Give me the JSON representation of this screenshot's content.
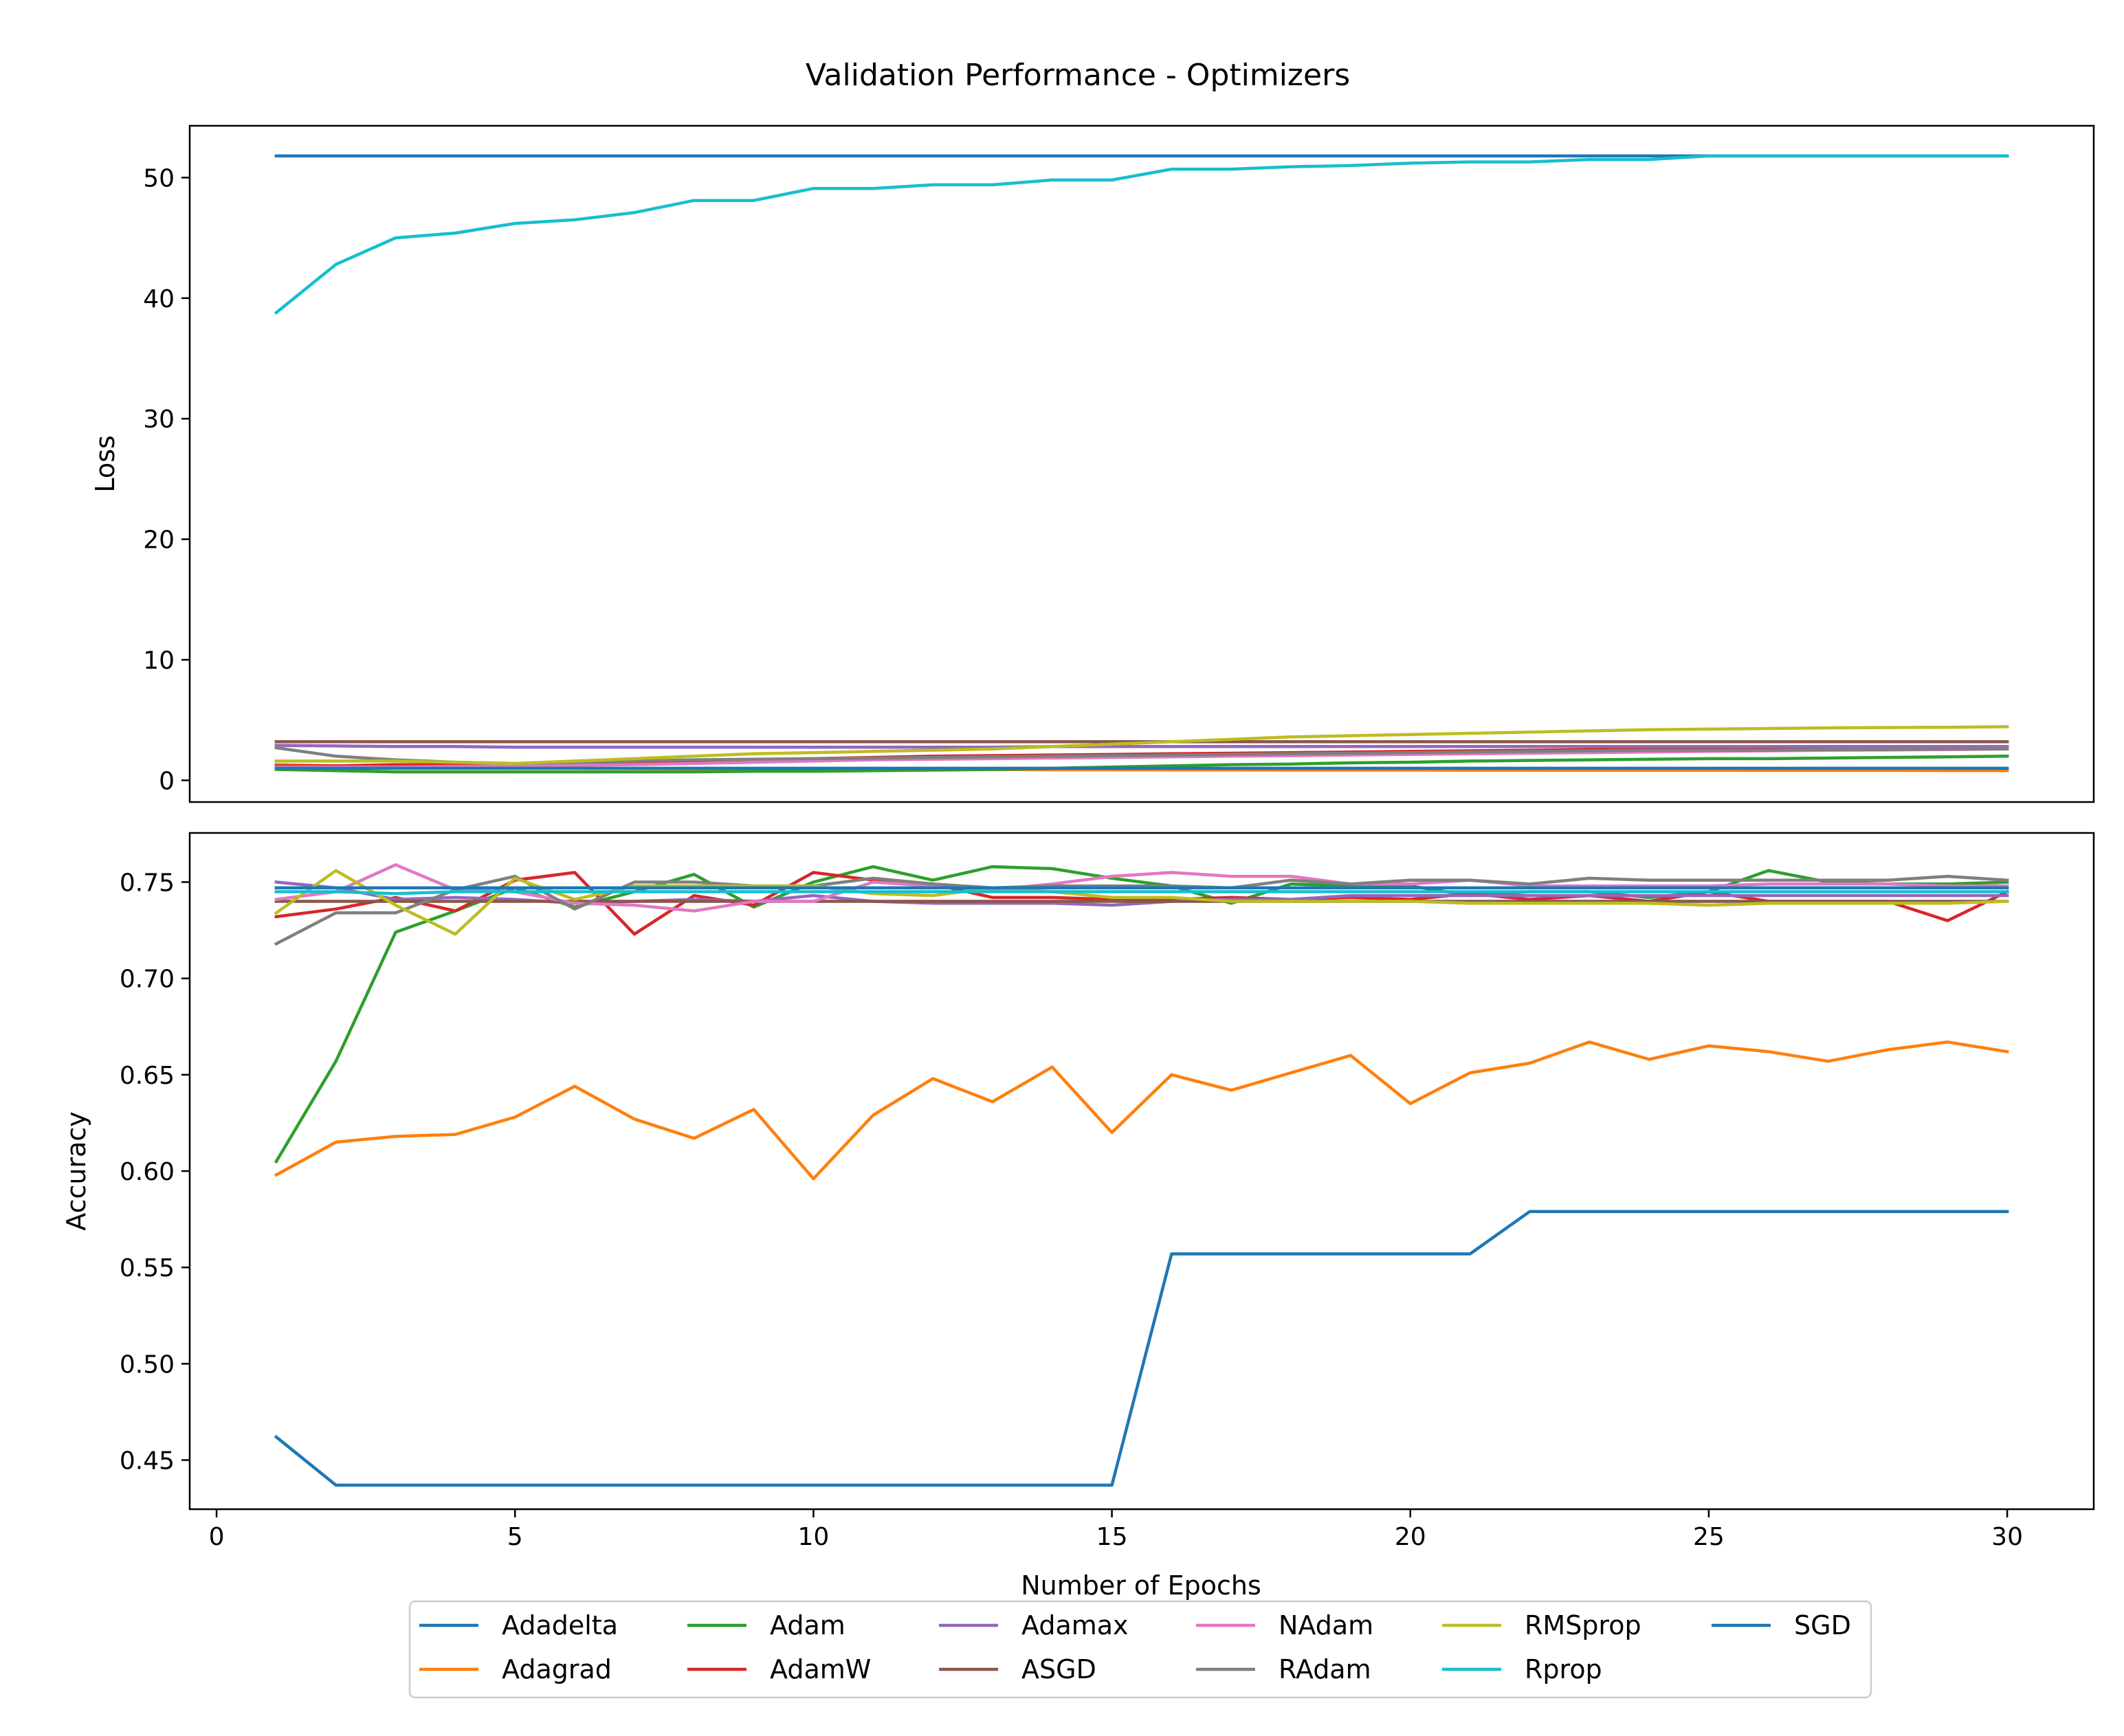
{
  "title": "Validation Performance - Optimizers",
  "colors": {
    "Adadelta": "#1f77b4",
    "Adagrad": "#ff7f0e",
    "Adam": "#2ca02c",
    "AdamW": "#d62728",
    "Adamax": "#9467bd",
    "ASGD": "#8c564b",
    "NAdam": "#e377c2",
    "RAdam": "#7f7f7f",
    "RMSprop": "#bcbd22",
    "Rprop": "#17becf",
    "SGD": "#1f77b4"
  },
  "legend_order": [
    "Adadelta",
    "Adagrad",
    "Adam",
    "AdamW",
    "Adamax",
    "ASGD",
    "NAdam",
    "RAdam",
    "RMSprop",
    "Rprop",
    "SGD"
  ],
  "chart_data": [
    {
      "type": "line",
      "ylabel": "Loss",
      "xlim": [
        -0.45,
        31.45
      ],
      "ylim": [
        -1.8,
        54.3
      ],
      "yticks": [
        0,
        10,
        20,
        30,
        40,
        50
      ],
      "x": [
        1,
        2,
        3,
        4,
        5,
        6,
        7,
        8,
        9,
        10,
        11,
        12,
        13,
        14,
        15,
        16,
        17,
        18,
        19,
        20,
        21,
        22,
        23,
        24,
        25,
        26,
        27,
        28,
        29,
        30
      ],
      "series": [
        {
          "name": "Adadelta",
          "values": [
            51.8,
            51.8,
            51.8,
            51.8,
            51.8,
            51.8,
            51.8,
            51.8,
            51.8,
            51.8,
            51.8,
            51.8,
            51.8,
            51.8,
            51.8,
            51.8,
            51.8,
            51.8,
            51.8,
            51.8,
            51.8,
            51.8,
            51.8,
            51.8,
            51.8,
            51.8,
            51.8,
            51.8,
            51.8,
            51.8
          ]
        },
        {
          "name": "Adagrad",
          "values": [
            1.3,
            1.2,
            1.1,
            1.05,
            1.0,
            1.0,
            0.98,
            0.95,
            0.95,
            0.92,
            0.92,
            0.9,
            0.9,
            0.88,
            0.88,
            0.87,
            0.86,
            0.85,
            0.85,
            0.85,
            0.84,
            0.84,
            0.83,
            0.83,
            0.83,
            0.82,
            0.82,
            0.82,
            0.81,
            0.81
          ]
        },
        {
          "name": "Adam",
          "values": [
            0.9,
            0.8,
            0.7,
            0.7,
            0.7,
            0.7,
            0.7,
            0.7,
            0.75,
            0.75,
            0.8,
            0.85,
            0.9,
            1.0,
            1.1,
            1.2,
            1.3,
            1.35,
            1.45,
            1.5,
            1.6,
            1.65,
            1.7,
            1.75,
            1.8,
            1.8,
            1.85,
            1.9,
            1.95,
            2.0
          ]
        },
        {
          "name": "AdamW",
          "values": [
            1.2,
            1.2,
            1.3,
            1.3,
            1.3,
            1.4,
            1.5,
            1.6,
            1.7,
            1.8,
            1.9,
            2.0,
            2.05,
            2.1,
            2.15,
            2.2,
            2.25,
            2.3,
            2.35,
            2.4,
            2.45,
            2.5,
            2.55,
            2.6,
            2.62,
            2.65,
            2.7,
            2.72,
            2.75,
            2.8
          ]
        },
        {
          "name": "Adamax",
          "values": [
            2.9,
            2.85,
            2.8,
            2.8,
            2.75,
            2.75,
            2.75,
            2.75,
            2.75,
            2.75,
            2.75,
            2.75,
            2.75,
            2.8,
            2.8,
            2.8,
            2.8,
            2.8,
            2.8,
            2.8,
            2.8,
            2.8,
            2.8,
            2.8,
            2.8,
            2.8,
            2.8,
            2.8,
            2.8,
            2.8
          ]
        },
        {
          "name": "ASGD",
          "values": [
            3.2,
            3.2,
            3.2,
            3.2,
            3.2,
            3.2,
            3.2,
            3.2,
            3.2,
            3.2,
            3.2,
            3.2,
            3.2,
            3.2,
            3.2,
            3.2,
            3.2,
            3.2,
            3.2,
            3.2,
            3.2,
            3.2,
            3.2,
            3.2,
            3.2,
            3.2,
            3.2,
            3.2,
            3.2,
            3.2
          ]
        },
        {
          "name": "NAdam",
          "values": [
            1.1,
            1.1,
            1.1,
            1.15,
            1.2,
            1.25,
            1.3,
            1.4,
            1.5,
            1.6,
            1.7,
            1.75,
            1.8,
            1.85,
            1.9,
            1.95,
            2.0,
            2.05,
            2.1,
            2.15,
            2.2,
            2.25,
            2.3,
            2.35,
            2.4,
            2.45,
            2.5,
            2.52,
            2.55,
            2.6
          ]
        },
        {
          "name": "RAdam",
          "values": [
            2.7,
            2.0,
            1.7,
            1.5,
            1.4,
            1.5,
            1.6,
            1.7,
            1.75,
            1.8,
            1.85,
            1.9,
            1.95,
            2.0,
            2.05,
            2.1,
            2.15,
            2.2,
            2.25,
            2.3,
            2.35,
            2.4,
            2.45,
            2.5,
            2.5,
            2.5,
            2.55,
            2.55,
            2.6,
            2.6
          ]
        },
        {
          "name": "RMSprop",
          "values": [
            1.6,
            1.6,
            1.6,
            1.5,
            1.4,
            1.6,
            1.8,
            2.0,
            2.2,
            2.3,
            2.4,
            2.5,
            2.6,
            2.8,
            3.0,
            3.2,
            3.4,
            3.6,
            3.7,
            3.8,
            3.9,
            4.0,
            4.1,
            4.2,
            4.25,
            4.3,
            4.35,
            4.38,
            4.4,
            4.45
          ]
        },
        {
          "name": "Rprop",
          "values": [
            38.8,
            42.8,
            45.0,
            45.4,
            46.2,
            46.5,
            47.1,
            48.1,
            48.1,
            49.1,
            49.1,
            49.4,
            49.4,
            49.8,
            49.8,
            50.7,
            50.7,
            50.9,
            51.0,
            51.2,
            51.3,
            51.3,
            51.5,
            51.5,
            51.8,
            51.8,
            51.8,
            51.8,
            51.8,
            51.8
          ]
        },
        {
          "name": "SGD",
          "values": [
            1.0,
            1.0,
            1.0,
            1.0,
            1.0,
            1.0,
            1.0,
            1.0,
            1.0,
            1.0,
            1.0,
            1.0,
            1.0,
            1.0,
            1.0,
            1.0,
            1.0,
            1.0,
            1.0,
            1.0,
            1.0,
            1.0,
            1.0,
            1.0,
            1.0,
            1.0,
            1.0,
            1.0,
            1.0,
            1.0
          ]
        }
      ]
    },
    {
      "type": "line",
      "ylabel": "Accuracy",
      "xlabel": "Number of Epochs",
      "xlim": [
        -0.45,
        31.45
      ],
      "ylim": [
        0.4245,
        0.7755
      ],
      "xticks": [
        0,
        5,
        10,
        15,
        20,
        25,
        30
      ],
      "yticks": [
        0.45,
        0.5,
        0.55,
        0.6,
        0.65,
        0.7,
        0.75
      ],
      "ytick_labels": [
        "0.45",
        "0.50",
        "0.55",
        "0.60",
        "0.65",
        "0.70",
        "0.75"
      ],
      "x": [
        1,
        2,
        3,
        4,
        5,
        6,
        7,
        8,
        9,
        10,
        11,
        12,
        13,
        14,
        15,
        16,
        17,
        18,
        19,
        20,
        21,
        22,
        23,
        24,
        25,
        26,
        27,
        28,
        29,
        30
      ],
      "series": [
        {
          "name": "Adadelta",
          "values": [
            0.462,
            0.437,
            0.437,
            0.437,
            0.437,
            0.437,
            0.437,
            0.437,
            0.437,
            0.437,
            0.437,
            0.437,
            0.437,
            0.437,
            0.437,
            0.557,
            0.557,
            0.557,
            0.557,
            0.557,
            0.557,
            0.579,
            0.579,
            0.579,
            0.579,
            0.579,
            0.579,
            0.579,
            0.579,
            0.579
          ]
        },
        {
          "name": "Adagrad",
          "values": [
            0.598,
            0.615,
            0.618,
            0.619,
            0.628,
            0.644,
            0.627,
            0.617,
            0.632,
            0.596,
            0.629,
            0.648,
            0.636,
            0.654,
            0.62,
            0.65,
            0.642,
            0.651,
            0.66,
            0.635,
            0.651,
            0.656,
            0.667,
            0.658,
            0.665,
            0.662,
            0.657,
            0.663,
            0.667,
            0.662
          ]
        },
        {
          "name": "Adam",
          "values": [
            0.605,
            0.657,
            0.724,
            0.735,
            0.747,
            0.737,
            0.745,
            0.754,
            0.737,
            0.75,
            0.758,
            0.751,
            0.758,
            0.757,
            0.752,
            0.748,
            0.739,
            0.749,
            0.748,
            0.748,
            0.743,
            0.745,
            0.745,
            0.742,
            0.745,
            0.756,
            0.75,
            0.749,
            0.749,
            0.75
          ]
        },
        {
          "name": "AdamW",
          "values": [
            0.732,
            0.736,
            0.742,
            0.735,
            0.751,
            0.755,
            0.723,
            0.743,
            0.738,
            0.755,
            0.751,
            0.749,
            0.742,
            0.742,
            0.741,
            0.741,
            0.742,
            0.741,
            0.742,
            0.741,
            0.744,
            0.741,
            0.743,
            0.74,
            0.745,
            0.74,
            0.74,
            0.74,
            0.73,
            0.745
          ]
        },
        {
          "name": "Adamax",
          "values": [
            0.75,
            0.747,
            0.741,
            0.742,
            0.741,
            0.739,
            0.74,
            0.741,
            0.74,
            0.743,
            0.74,
            0.739,
            0.739,
            0.739,
            0.738,
            0.74,
            0.741,
            0.741,
            0.743,
            0.743,
            0.743,
            0.743,
            0.743,
            0.743,
            0.743,
            0.743,
            0.743,
            0.743,
            0.743,
            0.743
          ]
        },
        {
          "name": "ASGD",
          "values": [
            0.74,
            0.74,
            0.74,
            0.74,
            0.74,
            0.74,
            0.74,
            0.74,
            0.74,
            0.74,
            0.74,
            0.74,
            0.74,
            0.74,
            0.74,
            0.74,
            0.74,
            0.74,
            0.74,
            0.74,
            0.74,
            0.74,
            0.74,
            0.74,
            0.74,
            0.74,
            0.74,
            0.74,
            0.74,
            0.74
          ]
        },
        {
          "name": "NAdam",
          "values": [
            0.741,
            0.745,
            0.759,
            0.746,
            0.745,
            0.739,
            0.738,
            0.735,
            0.74,
            0.74,
            0.75,
            0.748,
            0.746,
            0.749,
            0.753,
            0.755,
            0.753,
            0.753,
            0.749,
            0.749,
            0.751,
            0.748,
            0.748,
            0.748,
            0.748,
            0.749,
            0.749,
            0.749,
            0.748,
            0.748
          ]
        },
        {
          "name": "RAdam",
          "values": [
            0.718,
            0.734,
            0.734,
            0.746,
            0.753,
            0.736,
            0.75,
            0.75,
            0.748,
            0.748,
            0.752,
            0.749,
            0.747,
            0.748,
            0.748,
            0.748,
            0.747,
            0.751,
            0.749,
            0.751,
            0.751,
            0.749,
            0.752,
            0.751,
            0.751,
            0.751,
            0.751,
            0.751,
            0.753,
            0.751
          ]
        },
        {
          "name": "RMSprop",
          "values": [
            0.734,
            0.756,
            0.738,
            0.723,
            0.752,
            0.741,
            0.748,
            0.748,
            0.748,
            0.748,
            0.744,
            0.743,
            0.747,
            0.745,
            0.742,
            0.742,
            0.74,
            0.74,
            0.74,
            0.74,
            0.739,
            0.739,
            0.739,
            0.739,
            0.738,
            0.739,
            0.739,
            0.739,
            0.739,
            0.74
          ]
        },
        {
          "name": "Rprop",
          "values": [
            0.745,
            0.745,
            0.744,
            0.745,
            0.745,
            0.745,
            0.745,
            0.745,
            0.745,
            0.745,
            0.745,
            0.745,
            0.745,
            0.745,
            0.745,
            0.745,
            0.745,
            0.745,
            0.745,
            0.745,
            0.745,
            0.745,
            0.745,
            0.745,
            0.745,
            0.745,
            0.745,
            0.745,
            0.745,
            0.745
          ]
        },
        {
          "name": "SGD",
          "values": [
            0.747,
            0.747,
            0.747,
            0.747,
            0.747,
            0.747,
            0.747,
            0.747,
            0.747,
            0.747,
            0.747,
            0.747,
            0.747,
            0.747,
            0.747,
            0.747,
            0.747,
            0.747,
            0.747,
            0.747,
            0.747,
            0.747,
            0.747,
            0.747,
            0.747,
            0.747,
            0.747,
            0.747,
            0.747,
            0.747
          ]
        }
      ]
    }
  ]
}
